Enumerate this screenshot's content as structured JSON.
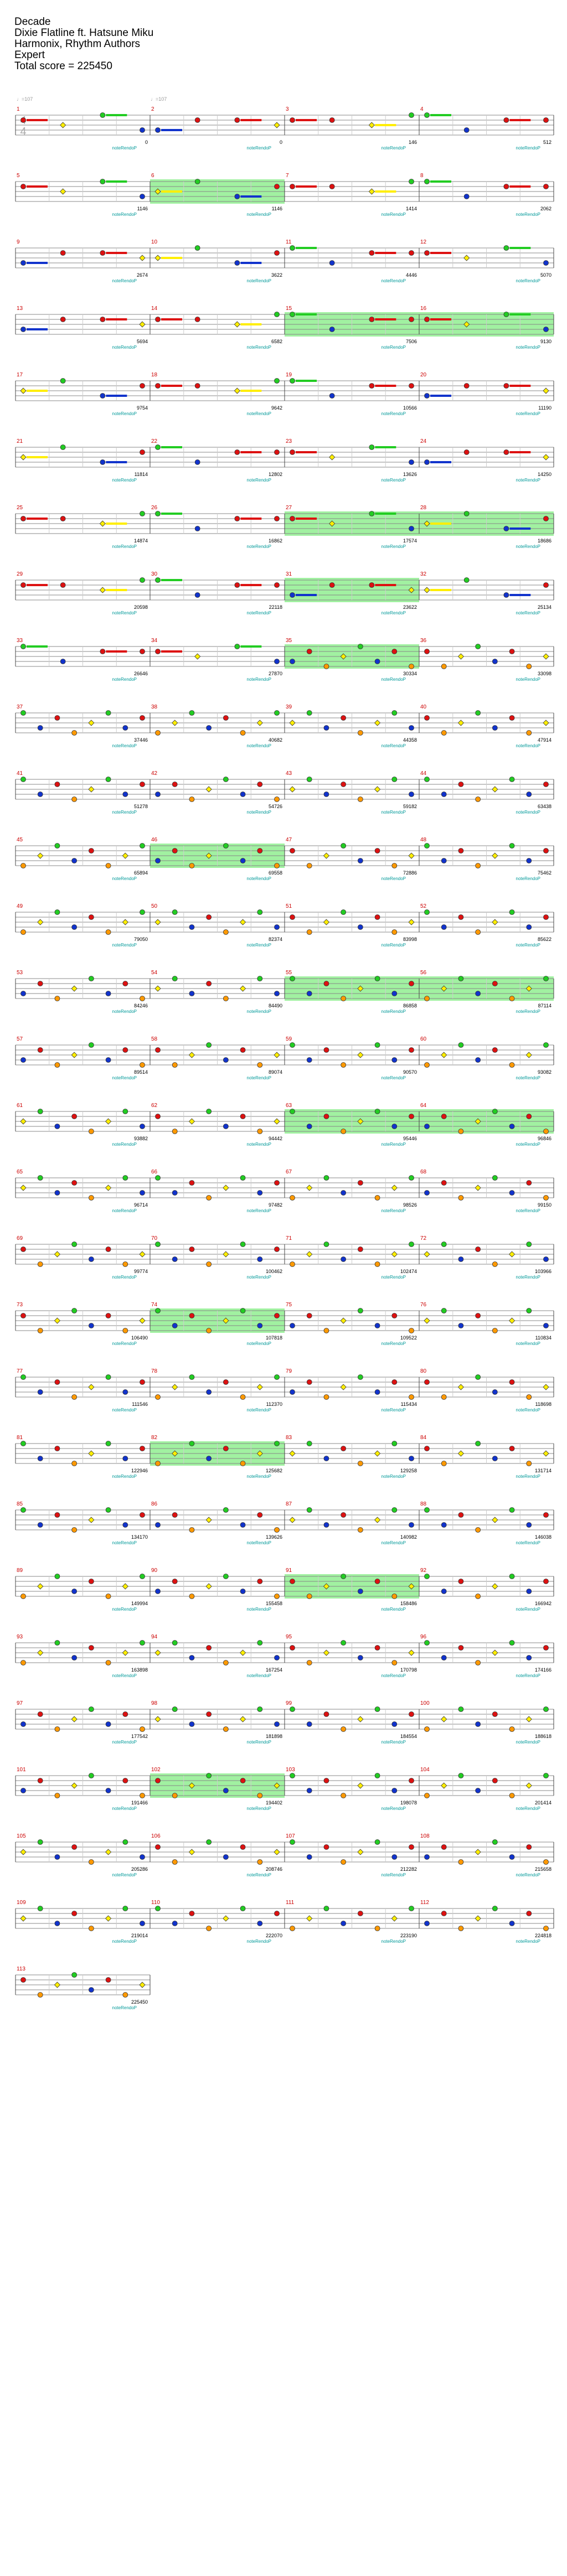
{
  "song": {
    "title": "Decade",
    "artist": "Dixie Flatline ft. Hatsune Miku",
    "charter": "Harmonix, Rhythm Authors",
    "difficulty": "Expert",
    "total_score_line": "Total score = 225450"
  },
  "colors": {
    "green": "#22cc22",
    "red": "#dd1111",
    "yellow": "#ffee00",
    "blue": "#1133cc",
    "orange": "#ff9900",
    "sp_phrase": "#90ee90",
    "measure_number": "#cc0000",
    "score_text": "#000000",
    "label_text": "#009999",
    "gray_text": "#999999"
  },
  "time_signature": {
    "top": "4",
    "bottom": "4"
  },
  "tempo_marks": [
    "♩=107",
    "♩=107"
  ],
  "measures": [
    {
      "n": "1",
      "score": "0"
    },
    {
      "n": "2",
      "score": "0"
    },
    {
      "n": "3",
      "score": "146"
    },
    {
      "n": "4",
      "score": "512"
    },
    {
      "n": "5",
      "score": "1146"
    },
    {
      "n": "6",
      "score": "1146"
    },
    {
      "n": "7",
      "score": "1414"
    },
    {
      "n": "8",
      "score": "2062"
    },
    {
      "n": "9",
      "score": "2674"
    },
    {
      "n": "10",
      "score": "3622"
    },
    {
      "n": "11",
      "score": "4446"
    },
    {
      "n": "12",
      "score": "5070"
    },
    {
      "n": "13",
      "score": "5694"
    },
    {
      "n": "14",
      "score": "6582"
    },
    {
      "n": "15",
      "score": "7506"
    },
    {
      "n": "16",
      "score": "9130"
    },
    {
      "n": "17",
      "score": "9754"
    },
    {
      "n": "18",
      "score": "9642"
    },
    {
      "n": "19",
      "score": "10566"
    },
    {
      "n": "20",
      "score": "11190"
    },
    {
      "n": "21",
      "score": "11814"
    },
    {
      "n": "22",
      "score": "12802"
    },
    {
      "n": "23",
      "score": "13626"
    },
    {
      "n": "24",
      "score": "14250"
    },
    {
      "n": "25",
      "score": "14874"
    },
    {
      "n": "26",
      "score": "16862"
    },
    {
      "n": "27",
      "score": "17574"
    },
    {
      "n": "28",
      "score": "18686"
    },
    {
      "n": "29",
      "score": "20598"
    },
    {
      "n": "30",
      "score": "22118"
    },
    {
      "n": "31",
      "score": "23622"
    },
    {
      "n": "32",
      "score": "25134"
    },
    {
      "n": "33",
      "score": "26646"
    },
    {
      "n": "34",
      "score": "27870"
    },
    {
      "n": "35",
      "score": "30334"
    },
    {
      "n": "36",
      "score": "33098"
    },
    {
      "n": "37",
      "score": "37446"
    },
    {
      "n": "38",
      "score": "40682"
    },
    {
      "n": "39",
      "score": "44358"
    },
    {
      "n": "40",
      "score": "47914"
    },
    {
      "n": "41",
      "score": "51278"
    },
    {
      "n": "42",
      "score": "54726"
    },
    {
      "n": "43",
      "score": "59182"
    },
    {
      "n": "44",
      "score": "63438"
    },
    {
      "n": "45",
      "score": "65894"
    },
    {
      "n": "46",
      "score": "69558"
    },
    {
      "n": "47",
      "score": "72886"
    },
    {
      "n": "48",
      "score": "75462"
    },
    {
      "n": "49",
      "score": "79050"
    },
    {
      "n": "50",
      "score": "82374"
    },
    {
      "n": "51",
      "score": "83998"
    },
    {
      "n": "52",
      "score": "85622"
    },
    {
      "n": "53",
      "score": "84246"
    },
    {
      "n": "54",
      "score": "84490"
    },
    {
      "n": "55",
      "score": "86858"
    },
    {
      "n": "56",
      "score": "87114"
    },
    {
      "n": "57",
      "score": "89514"
    },
    {
      "n": "58",
      "score": "89074"
    },
    {
      "n": "59",
      "score": "90570"
    },
    {
      "n": "60",
      "score": "93082"
    },
    {
      "n": "61",
      "score": "93882"
    },
    {
      "n": "62",
      "score": "94442"
    },
    {
      "n": "63",
      "score": "95446"
    },
    {
      "n": "64",
      "score": "96846"
    },
    {
      "n": "65",
      "score": "96714"
    },
    {
      "n": "66",
      "score": "97482"
    },
    {
      "n": "67",
      "score": "98526"
    },
    {
      "n": "68",
      "score": "99150"
    },
    {
      "n": "69",
      "score": "99774"
    },
    {
      "n": "70",
      "score": "100462"
    },
    {
      "n": "71",
      "score": "102474"
    },
    {
      "n": "72",
      "score": "103966"
    },
    {
      "n": "73",
      "score": "106490"
    },
    {
      "n": "74",
      "score": "107818"
    },
    {
      "n": "75",
      "score": "109522"
    },
    {
      "n": "76",
      "score": "110834"
    },
    {
      "n": "77",
      "score": "111546"
    },
    {
      "n": "78",
      "score": "112370"
    },
    {
      "n": "79",
      "score": "115434"
    },
    {
      "n": "80",
      "score": "118698"
    },
    {
      "n": "81",
      "score": "122946"
    },
    {
      "n": "82",
      "score": "125682"
    },
    {
      "n": "83",
      "score": "129258"
    },
    {
      "n": "84",
      "score": "131714"
    },
    {
      "n": "85",
      "score": "134170"
    },
    {
      "n": "86",
      "score": "139626"
    },
    {
      "n": "87",
      "score": "140982"
    },
    {
      "n": "88",
      "score": "146038"
    },
    {
      "n": "89",
      "score": "149994"
    },
    {
      "n": "90",
      "score": "155458"
    },
    {
      "n": "91",
      "score": "158486"
    },
    {
      "n": "92",
      "score": "166942"
    },
    {
      "n": "93",
      "score": "163898"
    },
    {
      "n": "94",
      "score": "167254"
    },
    {
      "n": "95",
      "score": "170798"
    },
    {
      "n": "96",
      "score": "174166"
    },
    {
      "n": "97",
      "score": "177542"
    },
    {
      "n": "98",
      "score": "181898"
    },
    {
      "n": "99",
      "score": "184554"
    },
    {
      "n": "100",
      "score": "188618"
    },
    {
      "n": "101",
      "score": "191466"
    },
    {
      "n": "102",
      "score": "194402"
    },
    {
      "n": "103",
      "score": "198078"
    },
    {
      "n": "104",
      "score": "201414"
    },
    {
      "n": "105",
      "score": "205286"
    },
    {
      "n": "106",
      "score": "208746"
    },
    {
      "n": "107",
      "score": "212282"
    },
    {
      "n": "108",
      "score": "215658"
    },
    {
      "n": "109",
      "score": "219014"
    },
    {
      "n": "110",
      "score": "222070"
    },
    {
      "n": "111",
      "score": "223190"
    },
    {
      "n": "112",
      "score": "224818"
    },
    {
      "n": "113",
      "score": "225450"
    }
  ],
  "measure_label": "noteRendoP",
  "sp_measures": [
    "6",
    "15",
    "16",
    "27",
    "28",
    "31",
    "35",
    "46",
    "55",
    "56",
    "63",
    "64",
    "74",
    "82",
    "91",
    "102"
  ],
  "lane_order": [
    "green",
    "red",
    "yellow",
    "blue",
    "orange"
  ]
}
